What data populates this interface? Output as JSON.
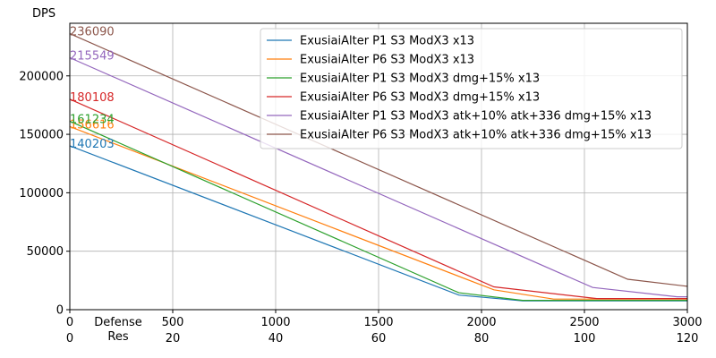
{
  "chart_data": {
    "type": "line",
    "ylabel": "DPS",
    "xlabel_lines": [
      "Defense",
      "Res"
    ],
    "xlim": [
      0,
      3000
    ],
    "ylim": [
      0,
      245000
    ],
    "grid": true,
    "legend_placement": "top-right",
    "x_ticks": [
      0,
      500,
      1000,
      1500,
      2000,
      2500,
      3000
    ],
    "x_ticks_secondary": [
      "0",
      "20",
      "40",
      "60",
      "80",
      "100",
      "120"
    ],
    "y_ticks": [
      0,
      50000,
      100000,
      150000,
      200000
    ],
    "series": [
      {
        "name": "ExusiaiAlter P1 S3 ModX3 x13",
        "color": "#1f77b4",
        "start_label": "140203",
        "points": [
          [
            0,
            140203
          ],
          [
            1890,
            12500
          ],
          [
            2200,
            7500
          ],
          [
            3000,
            7500
          ]
        ]
      },
      {
        "name": "ExusiaiAlter P6 S3 ModX3 x13",
        "color": "#ff7f0e",
        "start_label": "156616",
        "points": [
          [
            0,
            156616
          ],
          [
            2060,
            17000
          ],
          [
            2350,
            9000
          ],
          [
            3000,
            9000
          ]
        ]
      },
      {
        "name": "ExusiaiAlter P1 S3 ModX3 dmg+15% x13",
        "color": "#2ca02c",
        "start_label": "161234",
        "points": [
          [
            0,
            161234
          ],
          [
            1890,
            14500
          ],
          [
            2200,
            8000
          ],
          [
            3000,
            8000
          ]
        ]
      },
      {
        "name": "ExusiaiAlter P6 S3 ModX3 dmg+15% x13",
        "color": "#d62728",
        "start_label": "180108",
        "points": [
          [
            0,
            180108
          ],
          [
            2060,
            19500
          ],
          [
            2560,
            9500
          ],
          [
            3000,
            9500
          ]
        ]
      },
      {
        "name": "ExusiaiAlter P1 S3 ModX3 atk+10% atk+336 dmg+15% x13",
        "color": "#9467bd",
        "start_label": "215549",
        "points": [
          [
            0,
            215549
          ],
          [
            2540,
            19000
          ],
          [
            2950,
            11000
          ],
          [
            3000,
            11000
          ]
        ]
      },
      {
        "name": "ExusiaiAlter P6 S3 ModX3 atk+10% atk+336 dmg+15% x13",
        "color": "#8c564b",
        "start_label": "236090",
        "points": [
          [
            0,
            236090
          ],
          [
            2710,
            26000
          ],
          [
            3000,
            20000
          ]
        ]
      }
    ]
  }
}
